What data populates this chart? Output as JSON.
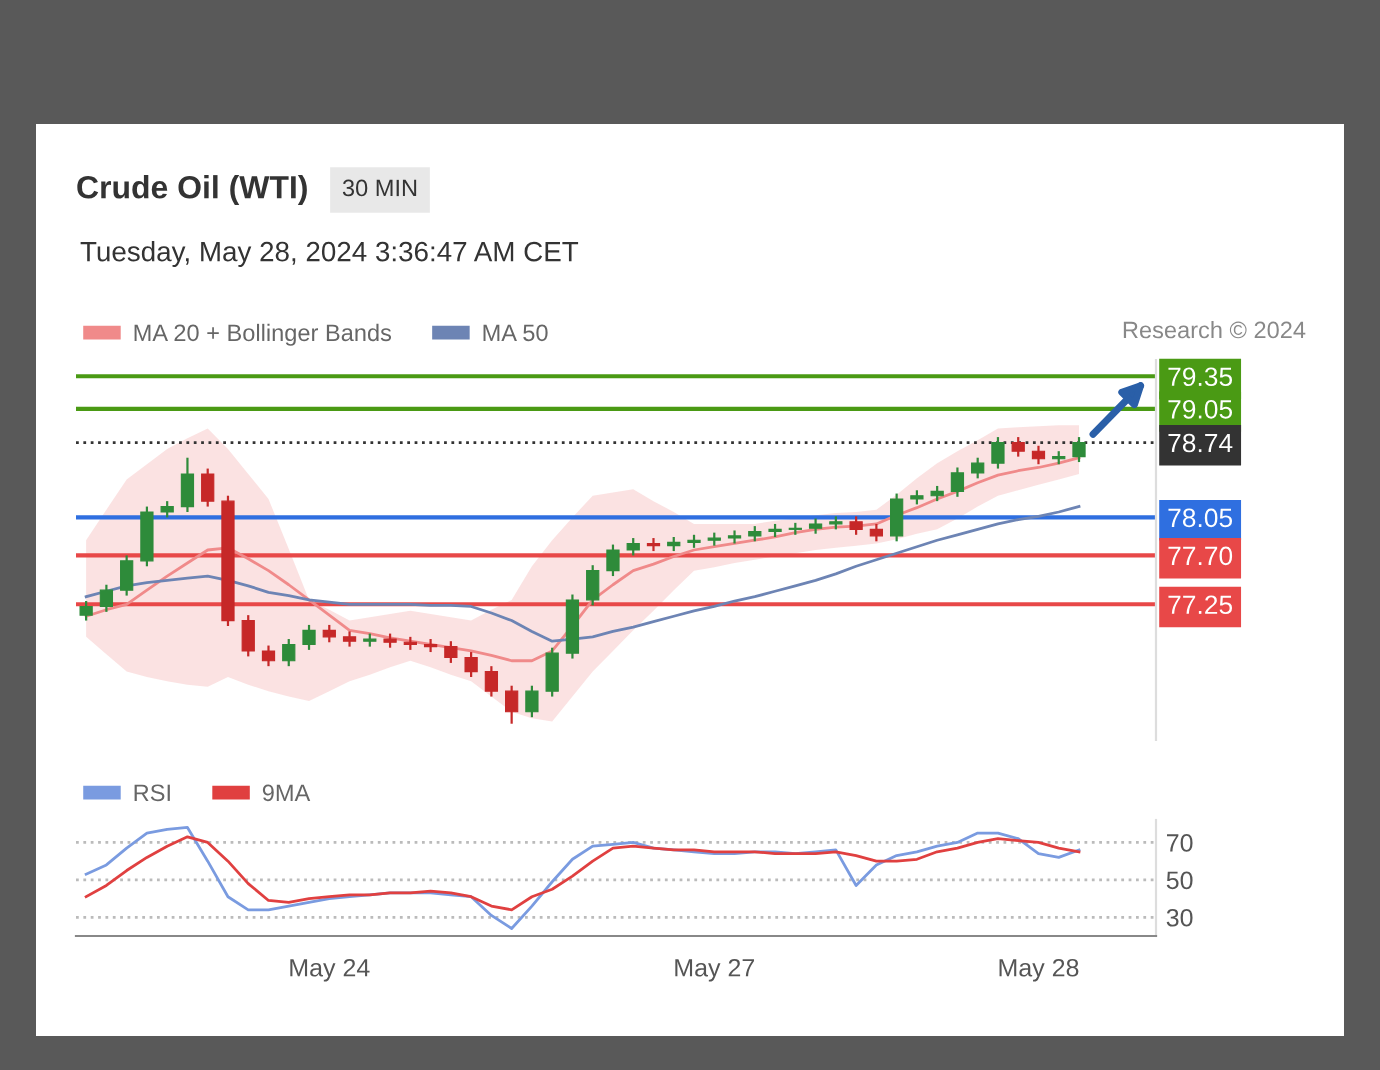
{
  "chart_data": [
    {
      "type": "candlestick",
      "title": "Crude Oil (WTI)",
      "subtitle": "Tuesday, May 28, 2024 3:36:47 AM CET",
      "annotations": [
        "30 MIN",
        "Research © 2024"
      ],
      "categories": [
        null,
        null,
        null,
        null,
        null,
        null,
        null,
        null,
        null,
        null,
        null,
        null,
        null,
        null,
        null,
        null,
        null,
        null,
        null,
        null,
        null,
        null,
        null,
        null,
        null,
        null,
        null,
        null,
        null,
        null,
        null,
        null,
        null,
        null,
        null,
        null,
        null,
        null,
        null,
        null,
        null,
        null,
        null,
        null,
        null,
        null,
        null,
        null,
        null,
        null
      ],
      "ohlc": [
        [
          77.15,
          77.28,
          77.1,
          77.23
        ],
        [
          77.23,
          77.43,
          77.18,
          77.38
        ],
        [
          77.38,
          77.7,
          77.33,
          77.65
        ],
        [
          77.65,
          78.15,
          77.6,
          78.1
        ],
        [
          78.1,
          78.2,
          78.05,
          78.15
        ],
        [
          78.15,
          78.6,
          78.1,
          78.45
        ],
        [
          78.45,
          78.5,
          78.15,
          78.2
        ],
        [
          78.2,
          78.25,
          77.05,
          77.1
        ],
        [
          77.1,
          77.15,
          76.77,
          76.82
        ],
        [
          76.82,
          76.87,
          76.68,
          76.73
        ],
        [
          76.73,
          76.93,
          76.68,
          76.88
        ],
        [
          76.88,
          77.06,
          76.83,
          77.01
        ],
        [
          77.01,
          77.06,
          76.9,
          76.95
        ],
        [
          76.95,
          77.0,
          76.86,
          76.91
        ],
        [
          76.91,
          76.98,
          76.86,
          76.93
        ],
        [
          76.93,
          76.98,
          76.85,
          76.9
        ],
        [
          76.9,
          76.95,
          76.83,
          76.88
        ],
        [
          76.88,
          76.93,
          76.81,
          76.86
        ],
        [
          76.86,
          76.91,
          76.71,
          76.76
        ],
        [
          76.76,
          76.81,
          76.58,
          76.63
        ],
        [
          76.63,
          76.68,
          76.4,
          76.45
        ],
        [
          76.45,
          76.5,
          76.15,
          76.26
        ],
        [
          76.26,
          76.5,
          76.21,
          76.45
        ],
        [
          76.45,
          76.85,
          76.4,
          76.8
        ],
        [
          76.8,
          77.34,
          76.75,
          77.29
        ],
        [
          77.29,
          77.61,
          77.24,
          77.56
        ],
        [
          77.56,
          77.8,
          77.51,
          77.75
        ],
        [
          77.75,
          77.86,
          77.7,
          77.81
        ],
        [
          77.81,
          77.86,
          77.74,
          77.79
        ],
        [
          77.79,
          77.87,
          77.74,
          77.82
        ],
        [
          77.82,
          77.89,
          77.77,
          77.84
        ],
        [
          77.84,
          77.91,
          77.79,
          77.86
        ],
        [
          77.86,
          77.93,
          77.81,
          77.88
        ],
        [
          77.88,
          77.97,
          77.83,
          77.92
        ],
        [
          77.92,
          77.99,
          77.87,
          77.94
        ],
        [
          77.94,
          78.0,
          77.89,
          77.95
        ],
        [
          77.95,
          78.04,
          77.9,
          77.99
        ],
        [
          77.99,
          78.06,
          77.94,
          78.01
        ],
        [
          78.01,
          78.06,
          77.89,
          77.94
        ],
        [
          77.94,
          77.99,
          77.83,
          77.88
        ],
        [
          77.88,
          78.27,
          77.83,
          78.22
        ],
        [
          78.22,
          78.3,
          78.17,
          78.25
        ],
        [
          78.25,
          78.34,
          78.2,
          78.29
        ],
        [
          78.29,
          78.51,
          78.24,
          78.46
        ],
        [
          78.46,
          78.6,
          78.41,
          78.55
        ],
        [
          78.55,
          78.79,
          78.5,
          78.74
        ],
        [
          78.74,
          78.79,
          78.61,
          78.66
        ],
        [
          78.66,
          78.71,
          78.54,
          78.59
        ],
        [
          78.59,
          78.66,
          78.54,
          78.61
        ],
        [
          78.61,
          78.79,
          78.56,
          78.74
        ]
      ],
      "colors": [
        "#2e8b3a",
        "#2e8b3a",
        "#2e8b3a",
        "#2e8b3a",
        "#2e8b3a",
        "#2e8b3a",
        "#c62828",
        "#c62828",
        "#c62828",
        "#c62828",
        "#2e8b3a",
        "#2e8b3a",
        "#c62828",
        "#c62828",
        "#2e8b3a",
        "#c62828",
        "#c62828",
        "#c62828",
        "#c62828",
        "#c62828",
        "#c62828",
        "#c62828",
        "#2e8b3a",
        "#2e8b3a",
        "#2e8b3a",
        "#2e8b3a",
        "#2e8b3a",
        "#2e8b3a",
        "#c62828",
        "#2e8b3a",
        "#2e8b3a",
        "#2e8b3a",
        "#2e8b3a",
        "#2e8b3a",
        "#2e8b3a",
        "#2e8b3a",
        "#2e8b3a",
        "#2e8b3a",
        "#c62828",
        "#c62828",
        "#2e8b3a",
        "#2e8b3a",
        "#2e8b3a",
        "#2e8b3a",
        "#2e8b3a",
        "#2e8b3a",
        "#c62828",
        "#c62828",
        "#2e8b3a",
        "#2e8b3a"
      ],
      "series": [
        {
          "name": "MA 20 + Bollinger Bands",
          "type": "line",
          "color": "#f08a8a",
          "values": [
            77.14,
            77.2,
            77.25,
            77.38,
            77.51,
            77.63,
            77.75,
            77.77,
            77.67,
            77.56,
            77.43,
            77.29,
            77.15,
            77.01,
            76.98,
            76.94,
            76.91,
            76.88,
            76.85,
            76.82,
            76.78,
            76.73,
            76.73,
            76.82,
            77.05,
            77.29,
            77.43,
            77.56,
            77.62,
            77.69,
            77.75,
            77.78,
            77.81,
            77.84,
            77.87,
            77.91,
            77.94,
            77.96,
            77.97,
            77.99,
            78.07,
            78.14,
            78.22,
            78.29,
            78.37,
            78.44,
            78.48,
            78.51,
            78.55,
            78.6
          ],
          "upper": [
            77.84,
            78.12,
            78.4,
            78.54,
            78.68,
            78.78,
            78.87,
            78.68,
            78.45,
            78.22,
            77.76,
            77.29,
            77.2,
            77.1,
            77.13,
            77.16,
            77.19,
            77.16,
            77.13,
            77.1,
            77.2,
            77.29,
            77.6,
            77.84,
            78.05,
            78.25,
            78.28,
            78.31,
            78.2,
            78.1,
            77.99,
            77.99,
            77.99,
            77.99,
            78.02,
            78.04,
            78.07,
            78.09,
            78.1,
            78.12,
            78.26,
            78.41,
            78.55,
            78.66,
            78.76,
            78.87,
            78.88,
            78.89,
            78.9,
            78.9
          ],
          "lower": [
            76.95,
            76.79,
            76.63,
            76.58,
            76.54,
            76.51,
            76.49,
            76.58,
            76.51,
            76.45,
            76.4,
            76.36,
            76.45,
            76.54,
            76.6,
            76.67,
            76.73,
            76.67,
            76.6,
            76.54,
            76.4,
            76.26,
            76.2,
            76.17,
            76.4,
            76.63,
            76.82,
            77.01,
            77.19,
            77.38,
            77.56,
            77.59,
            77.63,
            77.66,
            77.69,
            77.72,
            77.75,
            77.77,
            77.79,
            77.81,
            77.85,
            77.9,
            77.94,
            78.04,
            78.15,
            78.25,
            78.3,
            78.35,
            78.4,
            78.45
          ]
        },
        {
          "name": "MA 50",
          "type": "line",
          "color": "#6d84b4",
          "values": [
            77.32,
            77.37,
            77.42,
            77.45,
            77.47,
            77.49,
            77.51,
            77.47,
            77.42,
            77.36,
            77.33,
            77.29,
            77.27,
            77.25,
            77.25,
            77.25,
            77.25,
            77.24,
            77.24,
            77.23,
            77.17,
            77.1,
            77.0,
            76.91,
            76.93,
            76.95,
            77.0,
            77.04,
            77.09,
            77.14,
            77.19,
            77.23,
            77.28,
            77.32,
            77.37,
            77.42,
            77.47,
            77.53,
            77.6,
            77.66,
            77.72,
            77.78,
            77.84,
            77.89,
            77.94,
            77.99,
            78.03,
            78.06,
            78.1,
            78.15
          ]
        }
      ],
      "ref_lines": [
        {
          "axis": "y",
          "value": 79.35,
          "color": "#4a9a14",
          "line_style": "solid"
        },
        {
          "axis": "y",
          "value": 79.05,
          "color": "#4a9a14",
          "line_style": "solid"
        },
        {
          "axis": "y",
          "value": 78.74,
          "color": "#333333",
          "line_style": "dotted"
        },
        {
          "axis": "y",
          "value": 78.05,
          "color": "#2f6fe0",
          "line_style": "solid"
        },
        {
          "axis": "y",
          "value": 77.7,
          "color": "#e84848",
          "line_style": "solid"
        },
        {
          "axis": "y",
          "value": 77.25,
          "color": "#e84848",
          "line_style": "solid"
        }
      ],
      "ylim": [
        76.0,
        79.5
      ],
      "yticks": [
        79.35,
        79.05,
        78.74,
        78.05,
        {
          "value": 77.7,
          "label": "77.70"
        },
        77.25
      ],
      "legend": "top left",
      "grid": false
    },
    {
      "type": "line",
      "categories": [
        null,
        null,
        null,
        null,
        null,
        null,
        null,
        null,
        null,
        null,
        null,
        null,
        "May 24",
        null,
        null,
        null,
        null,
        null,
        null,
        null,
        null,
        null,
        null,
        null,
        null,
        null,
        null,
        null,
        null,
        null,
        null,
        "May 27",
        null,
        null,
        null,
        null,
        null,
        null,
        null,
        null,
        null,
        null,
        null,
        null,
        null,
        null,
        null,
        "May 28",
        null,
        null
      ],
      "series": [
        {
          "name": "RSI",
          "color": "#7a9be0",
          "values": [
            53,
            58,
            67,
            75,
            77,
            78,
            60,
            41,
            34,
            34,
            36,
            38,
            40,
            41,
            42,
            43,
            43,
            43,
            42,
            41,
            31,
            24,
            36,
            49,
            61,
            68,
            69,
            70,
            67,
            66,
            65,
            64,
            64,
            65,
            65,
            64,
            65,
            66,
            47,
            58,
            63,
            65,
            68,
            70,
            75,
            75,
            72,
            64,
            62,
            66
          ]
        },
        {
          "name": "9MA",
          "color": "#e04040",
          "values": [
            41,
            47,
            55,
            62,
            68,
            73,
            70,
            60,
            48,
            39,
            38,
            40,
            41,
            42,
            42,
            43,
            43,
            44,
            43,
            41,
            36,
            34,
            41,
            45,
            52,
            60,
            67,
            68,
            67,
            66,
            66,
            65,
            65,
            65,
            64,
            64,
            64,
            65,
            63,
            60,
            60,
            61,
            65,
            67,
            70,
            72,
            71,
            70,
            67,
            65
          ]
        }
      ],
      "ylim": [
        20,
        82
      ],
      "yticks": [
        30,
        50,
        70
      ],
      "grid": "y",
      "legend": "top left"
    }
  ]
}
